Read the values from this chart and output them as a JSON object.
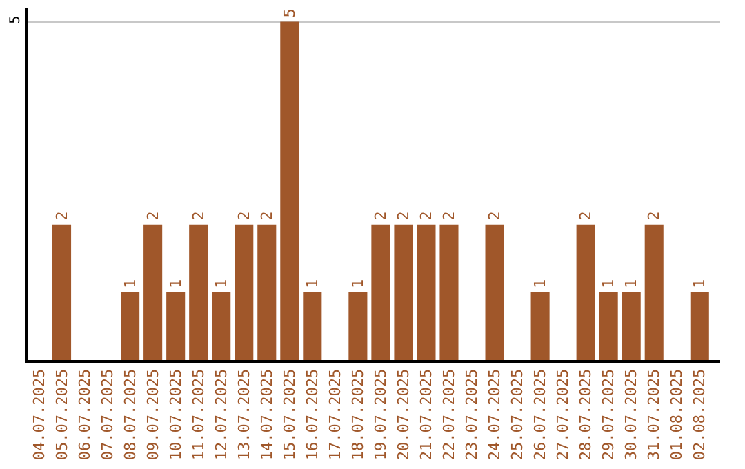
{
  "chart_data": {
    "type": "bar",
    "categories": [
      "04.07.2025",
      "05.07.2025",
      "06.07.2025",
      "07.07.2025",
      "08.07.2025",
      "09.07.2025",
      "10.07.2025",
      "11.07.2025",
      "12.07.2025",
      "13.07.2025",
      "14.07.2025",
      "15.07.2025",
      "16.07.2025",
      "17.07.2025",
      "18.07.2025",
      "19.07.2025",
      "20.07.2025",
      "21.07.2025",
      "22.07.2025",
      "23.07.2025",
      "24.07.2025",
      "25.07.2025",
      "26.07.2025",
      "27.07.2025",
      "28.07.2025",
      "29.07.2025",
      "30.07.2025",
      "31.07.2025",
      "01.08.2025",
      "02.08.2025"
    ],
    "values": [
      null,
      2,
      null,
      null,
      1,
      2,
      1,
      2,
      1,
      2,
      2,
      5,
      1,
      null,
      1,
      2,
      2,
      2,
      2,
      null,
      2,
      null,
      1,
      null,
      2,
      1,
      1,
      2,
      null,
      1
    ],
    "color": "#a0572a",
    "ylim": [
      0,
      5.2
    ],
    "yticks": [
      5
    ],
    "grid": "y",
    "data_labels": true
  }
}
